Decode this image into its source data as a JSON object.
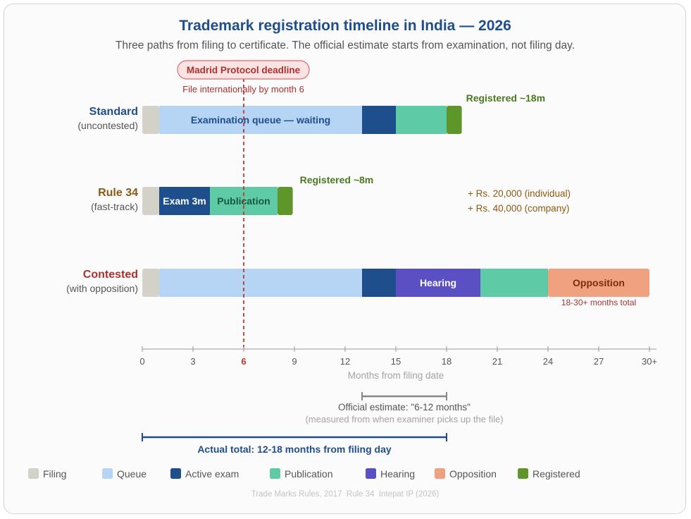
{
  "chart_data": {
    "type": "bar",
    "orientation": "horizontal",
    "subtype": "stacked-timeline",
    "title": "Trademark registration timeline in India — 2026",
    "subtitle": "Three paths from filing to certificate. The official estimate starts from examination, not filing day.",
    "xlabel": "Months from filing date",
    "xlim": [
      0,
      30
    ],
    "xticks": [
      {
        "value": 0,
        "label": "0"
      },
      {
        "value": 3,
        "label": "3"
      },
      {
        "value": 6,
        "label": "6",
        "highlight": true
      },
      {
        "value": 9,
        "label": "9"
      },
      {
        "value": 12,
        "label": "12"
      },
      {
        "value": 15,
        "label": "15"
      },
      {
        "value": 18,
        "label": "18"
      },
      {
        "value": 21,
        "label": "21"
      },
      {
        "value": 24,
        "label": "24"
      },
      {
        "value": 27,
        "label": "27"
      },
      {
        "value": 30,
        "label": "30+"
      }
    ],
    "phases": [
      {
        "key": "filing",
        "label": "Filing",
        "color": "#d3d1c8"
      },
      {
        "key": "queue",
        "label": "Queue",
        "color": "#b6d4f4"
      },
      {
        "key": "exam",
        "label": "Active exam",
        "color": "#1f4e8c"
      },
      {
        "key": "publication",
        "label": "Publication",
        "color": "#5fcba6"
      },
      {
        "key": "hearing",
        "label": "Hearing",
        "color": "#5b4fc4"
      },
      {
        "key": "opposition",
        "label": "Opposition",
        "color": "#f0a17f"
      },
      {
        "key": "registered",
        "label": "Registered",
        "color": "#5f962a"
      }
    ],
    "rows": [
      {
        "name": "Standard",
        "sub": "(uncontested)",
        "color": "#1f4e8c",
        "segments": [
          {
            "phase": "filing",
            "start": 0,
            "end": 1,
            "label": ""
          },
          {
            "phase": "queue",
            "start": 1,
            "end": 13,
            "label": "Examination queue — waiting"
          },
          {
            "phase": "exam",
            "start": 13,
            "end": 15,
            "label": ""
          },
          {
            "phase": "publication",
            "start": 15,
            "end": 18,
            "label": ""
          },
          {
            "phase": "registered",
            "start": 18,
            "end": 18.9,
            "label": ""
          }
        ],
        "end_label": "Registered ~18m"
      },
      {
        "name": "Rule 34",
        "sub": "(fast-track)",
        "color": "#8c5a12",
        "segments": [
          {
            "phase": "filing",
            "start": 0,
            "end": 1,
            "label": ""
          },
          {
            "phase": "exam",
            "start": 1,
            "end": 4,
            "label": "Exam 3m"
          },
          {
            "phase": "publication",
            "start": 4,
            "end": 8,
            "label": "Publication"
          },
          {
            "phase": "registered",
            "start": 8,
            "end": 8.9,
            "label": ""
          }
        ],
        "end_label": "Registered ~8m",
        "fee_notes": [
          "+ Rs. 20,000 (individual)",
          "+ Rs. 40,000 (company)"
        ]
      },
      {
        "name": "Contested",
        "sub": "(with opposition)",
        "color": "#a8322f",
        "segments": [
          {
            "phase": "filing",
            "start": 0,
            "end": 1,
            "label": ""
          },
          {
            "phase": "queue",
            "start": 1,
            "end": 13,
            "label": ""
          },
          {
            "phase": "exam",
            "start": 13,
            "end": 15,
            "label": ""
          },
          {
            "phase": "hearing",
            "start": 15,
            "end": 20,
            "label": "Hearing"
          },
          {
            "phase": "publication",
            "start": 20,
            "end": 24,
            "label": ""
          },
          {
            "phase": "opposition",
            "start": 24,
            "end": 30,
            "label": "Opposition"
          }
        ],
        "end_label": "18-30+ months total"
      }
    ],
    "marker": {
      "value": 6,
      "title": "Madrid Protocol deadline",
      "note": "File internationally by month 6",
      "color": "#c0392b"
    },
    "official_estimate": {
      "start": 13,
      "end": 18,
      "label": "Official estimate: \"6-12 months\"",
      "sub": "(measured from when examiner picks up the file)"
    },
    "actual_total": {
      "start": 0,
      "end": 18,
      "label": "Actual total: 12-18 months from filing day"
    },
    "source": "Trade Marks Rules, 2017  Rule 34  Intepat IP (2026)"
  }
}
